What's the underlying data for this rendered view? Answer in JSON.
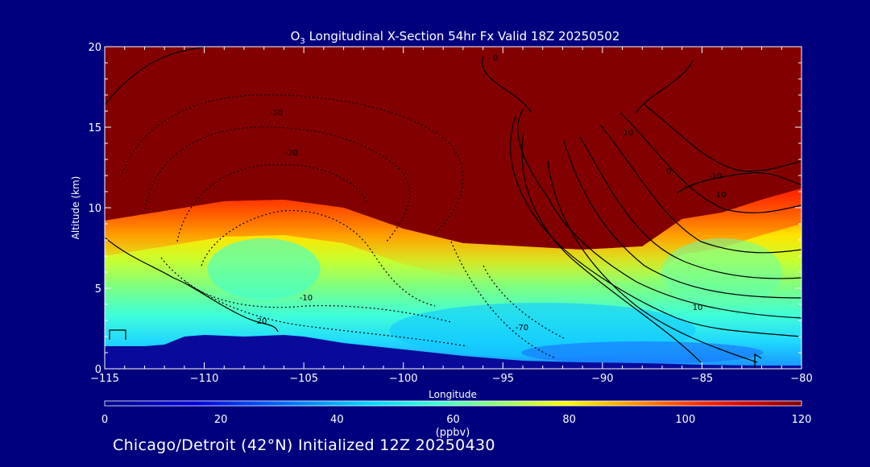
{
  "chart_data": {
    "type": "heatmap",
    "title_prefix": "O",
    "title_subscript": "3",
    "title_rest": " Longitudinal X-Section 54hr  Fx Valid 18Z 20250502",
    "xlabel": "Longitude",
    "ylabel": "Altitude (km)",
    "xlim": [
      -115,
      -80
    ],
    "ylim": [
      0,
      20
    ],
    "xticks": [
      -115,
      -110,
      -105,
      -100,
      -95,
      -90,
      -85,
      -80
    ],
    "xtick_labels": [
      "−115",
      "−110",
      "−105",
      "−100",
      "−95",
      "−90",
      "−85",
      "−80"
    ],
    "yticks": [
      0,
      5,
      10,
      15,
      20
    ],
    "ytick_labels": [
      "0",
      "5",
      "10",
      "15",
      "20"
    ],
    "colorbar": {
      "label": "(ppbv)",
      "range": [
        0,
        120
      ],
      "ticks": [
        0,
        20,
        40,
        60,
        80,
        100,
        120
      ],
      "tick_labels": [
        "0",
        "20",
        "40",
        "60",
        "80",
        "100",
        "120"
      ]
    },
    "ozone_field_ppbv": {
      "tropopause_height_km": [
        [
          -115,
          9.2
        ],
        [
          -112,
          9.8
        ],
        [
          -109,
          10.4
        ],
        [
          -106,
          10.5
        ],
        [
          -103,
          10.0
        ],
        [
          -100,
          8.7
        ],
        [
          -97,
          7.8
        ],
        [
          -94,
          7.6
        ],
        [
          -91,
          7.4
        ],
        [
          -88,
          7.6
        ],
        [
          -86,
          9.3
        ],
        [
          -84,
          9.7
        ],
        [
          -82,
          10.5
        ],
        [
          -80,
          11.2
        ]
      ],
      "stratosphere_ppbv": 120,
      "mid_troposphere_ppbv": 75,
      "low_troposphere_ppbv": 45,
      "boundary_layer_ppbv": 30
    },
    "terrain_height_km": [
      [
        -115,
        1.4
      ],
      [
        -114.5,
        1.4
      ],
      [
        -113,
        1.4
      ],
      [
        -112,
        1.5
      ],
      [
        -111,
        2.0
      ],
      [
        -110,
        2.1
      ],
      [
        -108,
        2.0
      ],
      [
        -106,
        2.1
      ],
      [
        -105,
        2.0
      ],
      [
        -103,
        1.6
      ],
      [
        -100,
        1.2
      ],
      [
        -97,
        0.8
      ],
      [
        -94,
        0.5
      ],
      [
        -91,
        0.4
      ],
      [
        -88,
        0.35
      ],
      [
        -85,
        0.25
      ],
      [
        -82,
        0.2
      ],
      [
        -80,
        0.2
      ]
    ],
    "contour_labels": [
      "0",
      "-10",
      "-20",
      "-10",
      "0",
      "-10",
      "-70",
      "10",
      "20",
      "10",
      "10"
    ]
  },
  "footer": "Chicago/Detroit (42°N) Initialized 12Z 20250430",
  "colors": {
    "background": "#00007e",
    "stratosphere": "#830000",
    "terrain": "#0a0a9a",
    "contour": "#000000"
  }
}
